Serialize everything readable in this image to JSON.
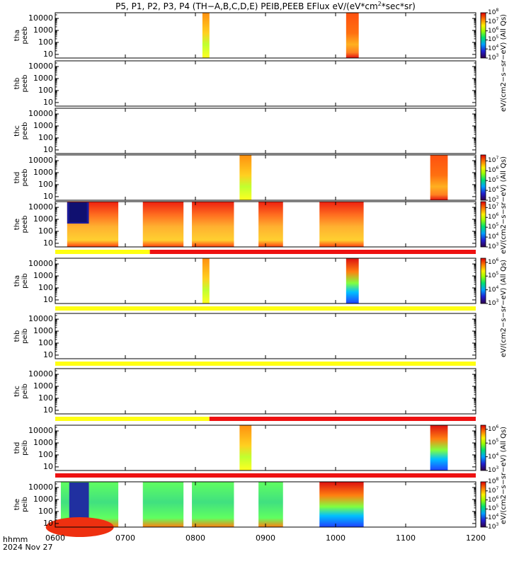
{
  "title": "P5, P1, P2, P3, P4 (TH−A,B,C,D,E) PEIB,PEEB EFlux eV/(eV*cm",
  "title_sup": "2",
  "title_end": "*sec*sr)",
  "x_label_line1": "hhmm",
  "x_label_line2": "2024 Nov 27",
  "x_ticks": [
    "0600",
    "0700",
    "0800",
    "0900",
    "1000",
    "1100",
    "1200"
  ],
  "colorbar_units": [
    "eV/(cm2−s−sr−eV) (All Qs)",
    "eV/(cm2−s−sr−eV) (All Qs)",
    "eV/(cm2−s−sr−eV) (All Qs)",
    "eV/(cm2−s−sr−eV) (All Qs)"
  ],
  "colors": {
    "red": "#ee1111",
    "yellow": "#ffff11",
    "black": "#000000"
  },
  "chart_data": {
    "type": "heatmap",
    "x_range_hours": [
      6,
      12
    ],
    "y_scale": "log",
    "panels": [
      {
        "ylabel": [
          "thа",
          "peeb"
        ],
        "yticks": [
          "10000",
          "1000",
          "100",
          "10"
        ],
        "ylim": [
          5,
          30000
        ],
        "colorbar": {
          "ticks": [
            "10^8",
            "10^7",
            "10^6",
            "10^5",
            "10^4",
            "10^3"
          ],
          "range": [
            3,
            8
          ]
        },
        "blocks": [
          {
            "t": [
              8.1,
              8.2
            ],
            "style": "spike"
          },
          {
            "t": [
              10.15,
              10.33
            ],
            "style": "hot"
          }
        ]
      },
      {
        "ylabel": [
          "thb",
          "peeb"
        ],
        "yticks": [
          "10000",
          "1000",
          "100",
          "10"
        ],
        "ylim": [
          5,
          30000
        ],
        "blocks": []
      },
      {
        "ylabel": [
          "thc",
          "peeb"
        ],
        "yticks": [
          "10000",
          "1000",
          "100",
          "10"
        ],
        "ylim": [
          5,
          30000
        ],
        "blocks": []
      },
      {
        "ylabel": [
          "thd",
          "peeb"
        ],
        "yticks": [
          "10000",
          "1000",
          "100",
          "10"
        ],
        "ylim": [
          5,
          30000
        ],
        "colorbar": {
          "ticks": [
            "10^7",
            "10^6",
            "10^5",
            "10^4",
            "10^3"
          ],
          "range": [
            3,
            7.6
          ]
        },
        "blocks": [
          {
            "t": [
              8.63,
              8.8
            ],
            "style": "spike"
          },
          {
            "t": [
              11.35,
              11.6
            ],
            "style": "hot"
          }
        ]
      },
      {
        "ylabel": [
          "the",
          "peeb"
        ],
        "yticks": [
          "10000",
          "1000",
          "100",
          "10"
        ],
        "ylim": [
          5,
          30000
        ],
        "colorbar": {
          "ticks": [
            "10^7",
            "10^6",
            "10^5",
            "10^4",
            "10^3"
          ],
          "range": [
            3,
            7.6
          ]
        },
        "blocks": [
          {
            "t": [
              6.17,
              6.9
            ],
            "style": "warm"
          },
          {
            "t": [
              7.25,
              7.83
            ],
            "style": "warm"
          },
          {
            "t": [
              7.95,
              8.55
            ],
            "style": "warm"
          },
          {
            "t": [
              8.9,
              9.25
            ],
            "style": "warm"
          },
          {
            "t": [
              9.77,
              10.4
            ],
            "style": "warm"
          }
        ],
        "mode_bar": [
          {
            "t": [
              6.0,
              7.35
            ],
            "color": "yellow"
          },
          {
            "t": [
              7.35,
              12.0
            ],
            "color": "red"
          }
        ]
      },
      {
        "ylabel": [
          "tha",
          "peib"
        ],
        "yticks": [
          "10000",
          "1000",
          "100",
          "10"
        ],
        "ylim": [
          5,
          30000
        ],
        "colorbar": {
          "ticks": [
            "10^6",
            "10^5",
            "10^4",
            "10^3"
          ],
          "range": [
            3,
            6.3
          ]
        },
        "blocks": [
          {
            "t": [
              8.1,
              8.2
            ],
            "style": "spike"
          },
          {
            "t": [
              10.15,
              10.33
            ],
            "style": "ion"
          }
        ],
        "mode_bar": [
          {
            "t": [
              6.0,
              12.0
            ],
            "color": "yellow"
          }
        ]
      },
      {
        "ylabel": [
          "thb",
          "peib"
        ],
        "yticks": [
          "10000",
          "1000",
          "100",
          "10"
        ],
        "ylim": [
          5,
          30000
        ],
        "blocks": [],
        "mode_bar": [
          {
            "t": [
              6.0,
              12.0
            ],
            "color": "yellow"
          }
        ]
      },
      {
        "ylabel": [
          "thc",
          "peib"
        ],
        "yticks": [
          "10000",
          "1000",
          "100",
          "10"
        ],
        "ylim": [
          5,
          30000
        ],
        "blocks": [],
        "mode_bar": [
          {
            "t": [
              6.0,
              8.2
            ],
            "color": "yellow"
          },
          {
            "t": [
              8.2,
              12.0
            ],
            "color": "red"
          }
        ]
      },
      {
        "ylabel": [
          "thd",
          "peib"
        ],
        "yticks": [
          "10000",
          "1000",
          "100",
          "10"
        ],
        "ylim": [
          5,
          30000
        ],
        "colorbar": {
          "ticks": [
            "10^6",
            "10^5",
            "10^4",
            "10^3"
          ],
          "range": [
            3,
            6.3
          ]
        },
        "blocks": [
          {
            "t": [
              8.63,
              8.8
            ],
            "style": "spike"
          },
          {
            "t": [
              11.35,
              11.6
            ],
            "style": "ion"
          }
        ],
        "mode_bar": [
          {
            "t": [
              6.0,
              12.0
            ],
            "color": "red"
          }
        ]
      },
      {
        "ylabel": [
          "the",
          "peib"
        ],
        "yticks": [
          "10000",
          "1000",
          "100",
          "10"
        ],
        "ylim": [
          5,
          30000
        ],
        "colorbar": {
          "ticks": [
            "10^8",
            "10^7",
            "10^6",
            "10^5",
            "10^4",
            "10^3"
          ],
          "range": [
            3,
            8
          ]
        },
        "blocks": [
          {
            "t": [
              6.08,
              6.9
            ],
            "style": "ionwarm"
          },
          {
            "t": [
              7.25,
              7.83
            ],
            "style": "ionwarm"
          },
          {
            "t": [
              7.95,
              8.55
            ],
            "style": "ionwarm"
          },
          {
            "t": [
              8.9,
              9.25
            ],
            "style": "ionwarm"
          },
          {
            "t": [
              9.77,
              10.4
            ],
            "style": "ion"
          }
        ]
      }
    ]
  }
}
